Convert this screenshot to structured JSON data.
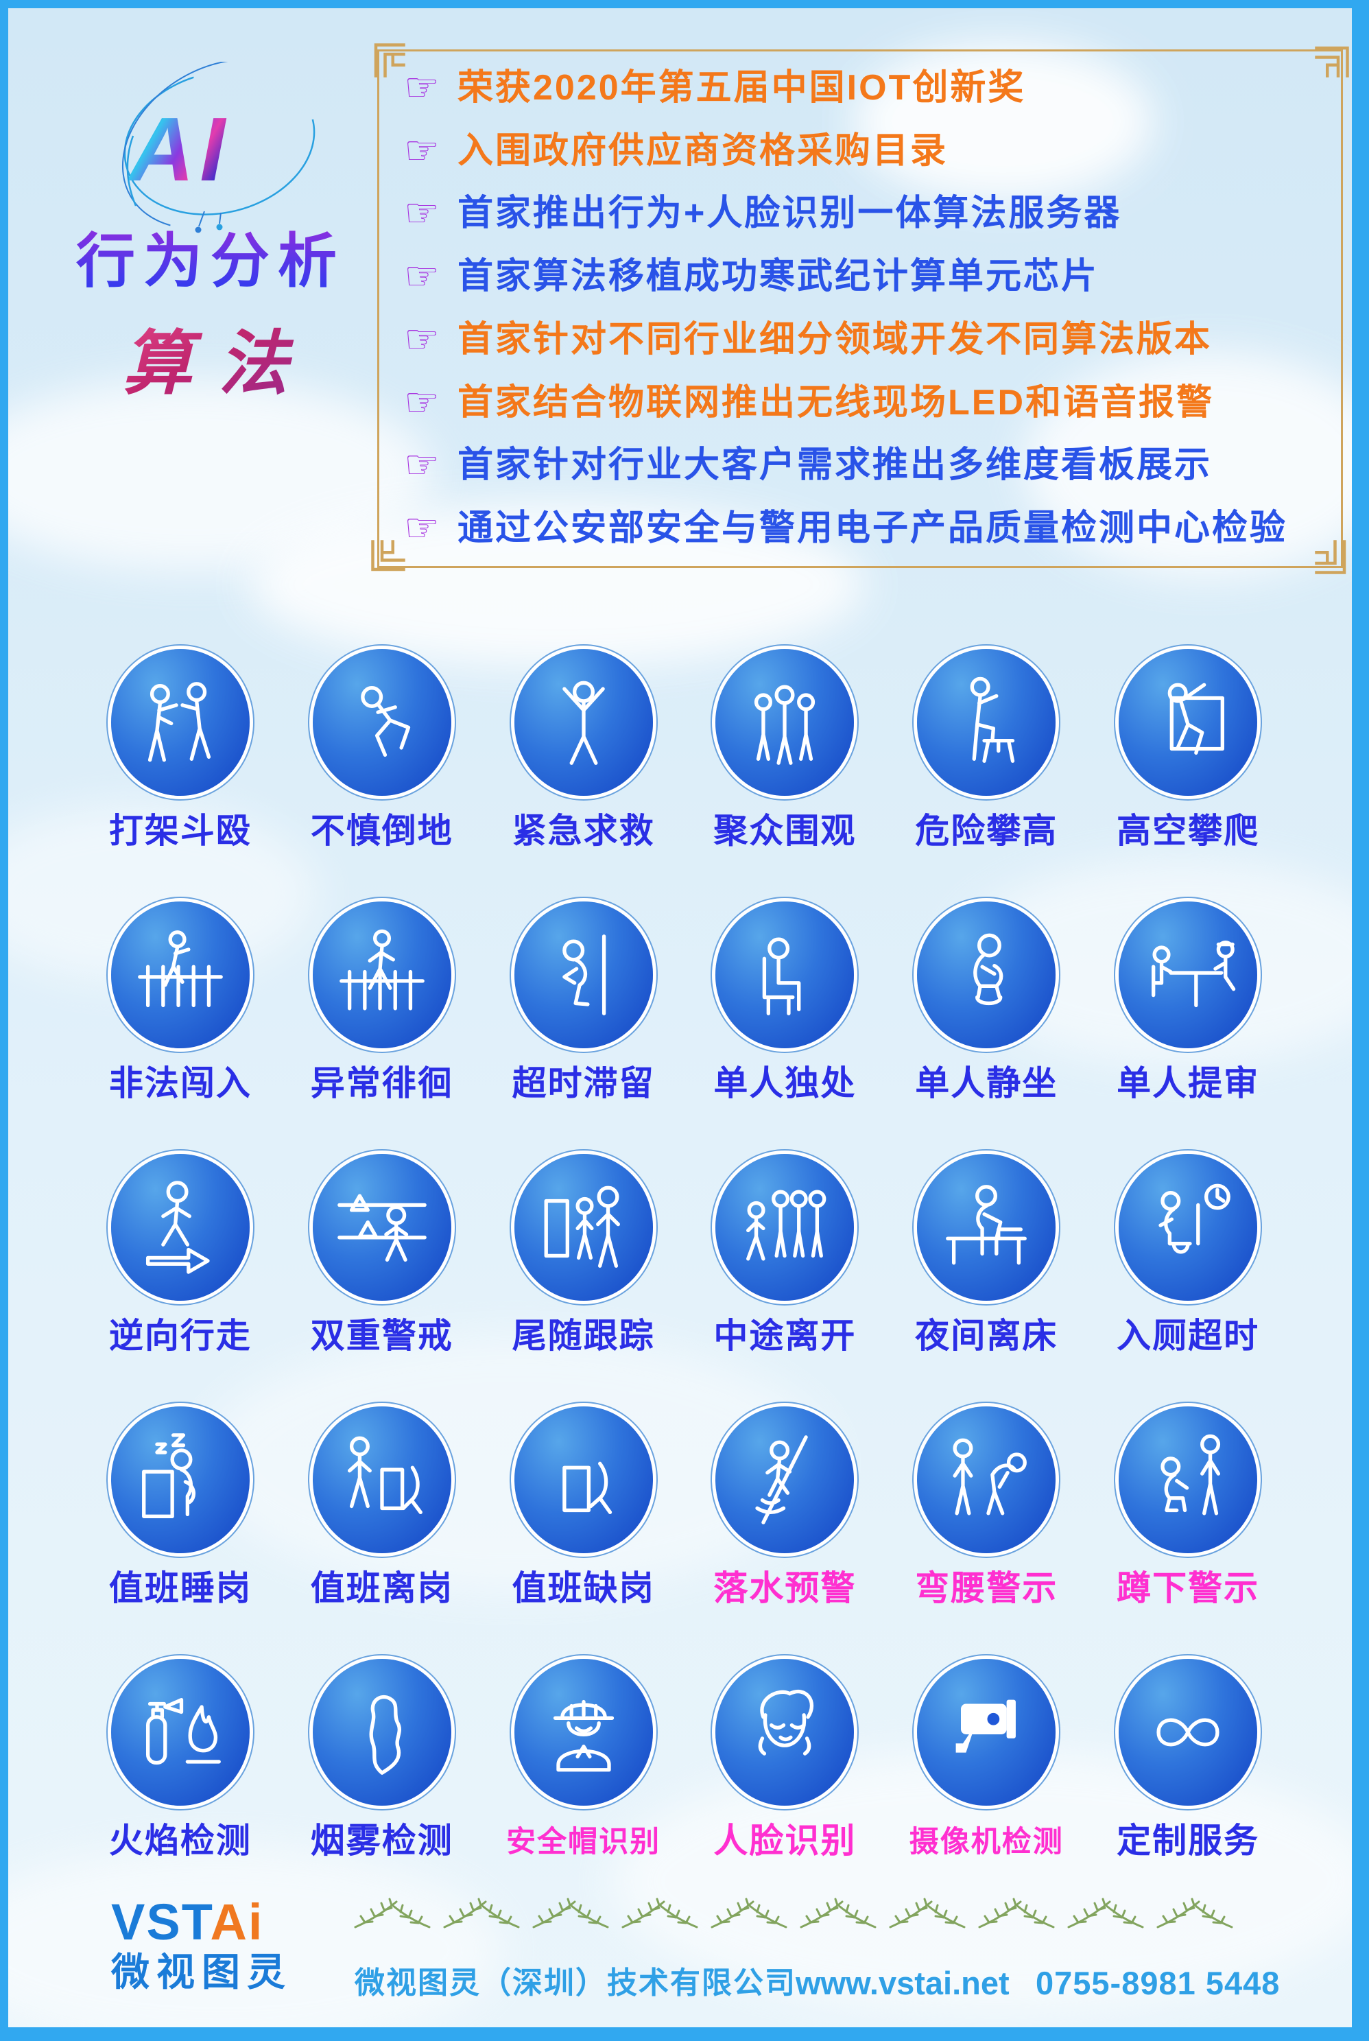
{
  "header": {
    "ai": "AI",
    "title1": "行为分析",
    "title2": "算法"
  },
  "achievements": {
    "hand_glyph": "☞",
    "items": [
      {
        "text": "荣获2020年第五届中国IOT创新奖",
        "color": "orange"
      },
      {
        "text": "入围政府供应商资格采购目录",
        "color": "orange"
      },
      {
        "text": "首家推出行为+人脸识别一体算法服务器",
        "color": "blue"
      },
      {
        "text": "首家算法移植成功寒武纪计算单元芯片",
        "color": "blue"
      },
      {
        "text": "首家针对不同行业细分领域开发不同算法版本",
        "color": "orange"
      },
      {
        "text": "首家结合物联网推出无线现场LED和语音报警",
        "color": "orange"
      },
      {
        "text": "首家针对行业大客户需求推出多维度看板展示",
        "color": "blue"
      },
      {
        "text": "通过公安部安全与警用电子产品质量检测中心检验",
        "color": "blue"
      }
    ]
  },
  "grid": {
    "items": [
      {
        "label": "打架斗殴",
        "icon": "fight",
        "color": "blue"
      },
      {
        "label": "不慎倒地",
        "icon": "fall",
        "color": "blue"
      },
      {
        "label": "紧急求救",
        "icon": "sos",
        "color": "blue"
      },
      {
        "label": "聚众围观",
        "icon": "crowd",
        "color": "blue"
      },
      {
        "label": "危险攀高",
        "icon": "climb-stool",
        "color": "blue"
      },
      {
        "label": "高空攀爬",
        "icon": "climb-high",
        "color": "blue"
      },
      {
        "label": "非法闯入",
        "icon": "intrude",
        "color": "blue"
      },
      {
        "label": "异常徘徊",
        "icon": "loiter",
        "color": "blue"
      },
      {
        "label": "超时滞留",
        "icon": "overstay",
        "color": "blue"
      },
      {
        "label": "单人独处",
        "icon": "alone",
        "color": "blue"
      },
      {
        "label": "单人静坐",
        "icon": "sit-still",
        "color": "blue"
      },
      {
        "label": "单人提审",
        "icon": "interrogate",
        "color": "blue"
      },
      {
        "label": "逆向行走",
        "icon": "reverse-walk",
        "color": "blue"
      },
      {
        "label": "双重警戒",
        "icon": "double-guard",
        "color": "blue"
      },
      {
        "label": "尾随跟踪",
        "icon": "tailgate",
        "color": "blue"
      },
      {
        "label": "中途离开",
        "icon": "leave-midway",
        "color": "blue"
      },
      {
        "label": "夜间离床",
        "icon": "off-bed",
        "color": "blue"
      },
      {
        "label": "入厕超时",
        "icon": "toilet-timeout",
        "color": "blue"
      },
      {
        "label": "值班睡岗",
        "icon": "sleep-duty",
        "color": "blue"
      },
      {
        "label": "值班离岗",
        "icon": "leave-duty",
        "color": "blue"
      },
      {
        "label": "值班缺岗",
        "icon": "absent-duty",
        "color": "blue"
      },
      {
        "label": "落水预警",
        "icon": "water-warning",
        "color": "pink"
      },
      {
        "label": "弯腰警示",
        "icon": "bend-over",
        "color": "pink"
      },
      {
        "label": "蹲下警示",
        "icon": "squat",
        "color": "pink"
      },
      {
        "label": "火焰检测",
        "icon": "fire",
        "color": "blue"
      },
      {
        "label": "烟雾检测",
        "icon": "smoke",
        "color": "blue"
      },
      {
        "label": "安全帽识别",
        "icon": "helmet",
        "color": "pink",
        "small": true
      },
      {
        "label": "人脸识别",
        "icon": "face",
        "color": "pink"
      },
      {
        "label": "摄像机检测",
        "icon": "camera",
        "color": "pink",
        "small": true
      },
      {
        "label": "定制服务",
        "icon": "custom",
        "color": "blue"
      }
    ]
  },
  "footer": {
    "brand_en_blue": "VST",
    "brand_en_orange": "Ai",
    "brand_cn": "微视图灵",
    "company": "微视图灵（深圳）技术有限公司",
    "website": "www.vstai.net",
    "phone": "0755-8981 5448"
  },
  "colors": {
    "frame_blue": "#31a8f0",
    "background_blue": "#d9ecf8",
    "accent_orange": "#f4781a",
    "accent_blue": "#2953e8",
    "hand_purple": "#a835e0",
    "label_blue": "#2a2ee6",
    "label_pink": "#ff2fd0",
    "badge_blue_light": "#57a6ea",
    "badge_blue_dark": "#1242c4",
    "box_border_gold": "#cfa45c",
    "footer_text_blue": "#2fa0e6",
    "brand_blue": "#1a7bd8",
    "brand_orange": "#f07820",
    "garland_green": "#82a45e"
  }
}
